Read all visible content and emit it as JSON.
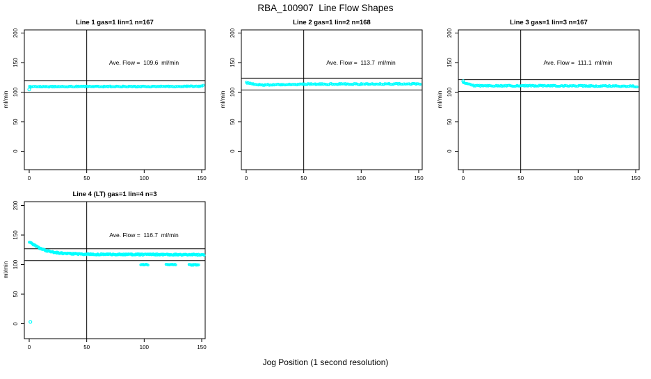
{
  "figure": {
    "title": "RBA_100907  Line Flow Shapes",
    "xlabel": "Jog Position (1 second resolution)"
  },
  "colors": {
    "points": "#00FFFF",
    "axis": "#000000",
    "background": "#FFFFFF"
  },
  "chart_data": [
    {
      "type": "scatter",
      "title": "Line 1 gas=1 lin=1 n=167",
      "annotation": "Ave. Flow =  109.6  ml/min",
      "ylabel": "ml/min",
      "ave_flow": 109.6,
      "n": 167,
      "xticks": [
        0,
        50,
        100,
        150
      ],
      "yticks": [
        0,
        50,
        100,
        150,
        200
      ],
      "xlim": [
        -4,
        156
      ],
      "ylim": [
        -31,
        206
      ],
      "vline_x": 50,
      "hlines": [
        99.6,
        119.6
      ],
      "band": [
        [
          0,
          109.3
        ],
        [
          20,
          109.4
        ],
        [
          60,
          109.5
        ],
        [
          100,
          109.5
        ],
        [
          140,
          109.8
        ],
        [
          149,
          110.2
        ],
        [
          151,
          111.3
        ],
        [
          152,
          111.5
        ]
      ],
      "outliers": [
        [
          0,
          104.5
        ]
      ],
      "low_segments": [],
      "jitter": 0.8,
      "density": 1.15
    },
    {
      "type": "scatter",
      "title": "Line 2 gas=1 lin=2 n=168",
      "annotation": "Ave. Flow =  113.7  ml/min",
      "ylabel": "ml/min",
      "ave_flow": 113.7,
      "n": 168,
      "xticks": [
        0,
        50,
        100,
        150
      ],
      "yticks": [
        0,
        50,
        100,
        150,
        200
      ],
      "xlim": [
        -4,
        156
      ],
      "ylim": [
        -31,
        206
      ],
      "vline_x": 50,
      "hlines": [
        103.7,
        123.7
      ],
      "band": [
        [
          0,
          116
        ],
        [
          4,
          114.5
        ],
        [
          8,
          113
        ],
        [
          14,
          112.4
        ],
        [
          24,
          112.6
        ],
        [
          40,
          113.2
        ],
        [
          70,
          113.6
        ],
        [
          110,
          113.7
        ],
        [
          150,
          114
        ],
        [
          152,
          114
        ]
      ],
      "outliers": [],
      "low_segments": [],
      "jitter": 1.0,
      "density": 1.15
    },
    {
      "type": "scatter",
      "title": "Line 3 gas=1 lin=3 n=167",
      "annotation": "Ave. Flow =  111.1  ml/min",
      "ylabel": "ml/min",
      "ave_flow": 111.1,
      "n": 167,
      "xticks": [
        0,
        50,
        100,
        150
      ],
      "yticks": [
        0,
        50,
        100,
        150,
        200
      ],
      "xlim": [
        -4,
        156
      ],
      "ylim": [
        -31,
        206
      ],
      "vline_x": 50,
      "hlines": [
        101.1,
        121.1
      ],
      "band": [
        [
          0,
          116.5
        ],
        [
          4,
          113.5
        ],
        [
          8,
          111.3
        ],
        [
          12,
          110.8
        ],
        [
          60,
          110.8
        ],
        [
          120,
          110.4
        ],
        [
          148,
          110.2
        ],
        [
          150,
          109
        ],
        [
          152,
          108.5
        ]
      ],
      "outliers": [
        [
          0,
          118.5
        ]
      ],
      "low_segments": [],
      "jitter": 0.9,
      "density": 1.15
    },
    {
      "type": "scatter",
      "title": "Line 4 (LT) gas=1 lin=4 n=3",
      "annotation": "Ave. Flow =  116.7  ml/min",
      "ylabel": "ml/min",
      "ave_flow": 116.7,
      "n": 3,
      "xticks": [
        0,
        50,
        100,
        150
      ],
      "yticks": [
        0,
        50,
        100,
        150,
        200
      ],
      "xlim": [
        -4,
        156
      ],
      "ylim": [
        -31,
        206
      ],
      "vline_x": 50,
      "hlines": [
        106.7,
        126.7
      ],
      "band": [
        [
          0,
          138
        ],
        [
          5,
          132.5
        ],
        [
          10,
          127
        ],
        [
          15,
          123.5
        ],
        [
          20,
          121.5
        ],
        [
          25,
          120
        ],
        [
          30,
          119
        ],
        [
          40,
          118
        ],
        [
          50,
          117.5
        ],
        [
          80,
          117.2
        ],
        [
          152,
          116.8
        ]
      ],
      "outliers": [
        [
          1,
          3
        ]
      ],
      "low_segments": [
        [
          97,
          104,
          100
        ],
        [
          119,
          128,
          100
        ],
        [
          139,
          148,
          99.5
        ]
      ],
      "jitter": 1.1,
      "density": 2.0
    }
  ]
}
